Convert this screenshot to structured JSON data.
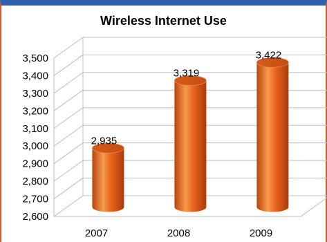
{
  "chart_data": {
    "type": "bar",
    "style": "3d-cylinder",
    "title": "Wireless Internet Use",
    "categories": [
      "2007",
      "2008",
      "2009"
    ],
    "values": [
      2935,
      3319,
      3422
    ],
    "data_labels": [
      "2,935",
      "3,319",
      "3,422"
    ],
    "ylim": [
      2600,
      3500
    ],
    "yticks": [
      2600,
      2700,
      2800,
      2900,
      3000,
      3100,
      3200,
      3300,
      3400,
      3500
    ],
    "ytick_labels": [
      "2,600",
      "2,700",
      "2,800",
      "2,900",
      "3,000",
      "3,100",
      "3,200",
      "3,300",
      "3,400",
      "3,500"
    ],
    "grid": true,
    "legend": "none",
    "colors": {
      "bar": "#e8621c",
      "bar_dark": "#b8450e",
      "bar_light": "#f79a4e",
      "frame_top": "#2f62ad",
      "frame_side": "#d4572c"
    }
  }
}
